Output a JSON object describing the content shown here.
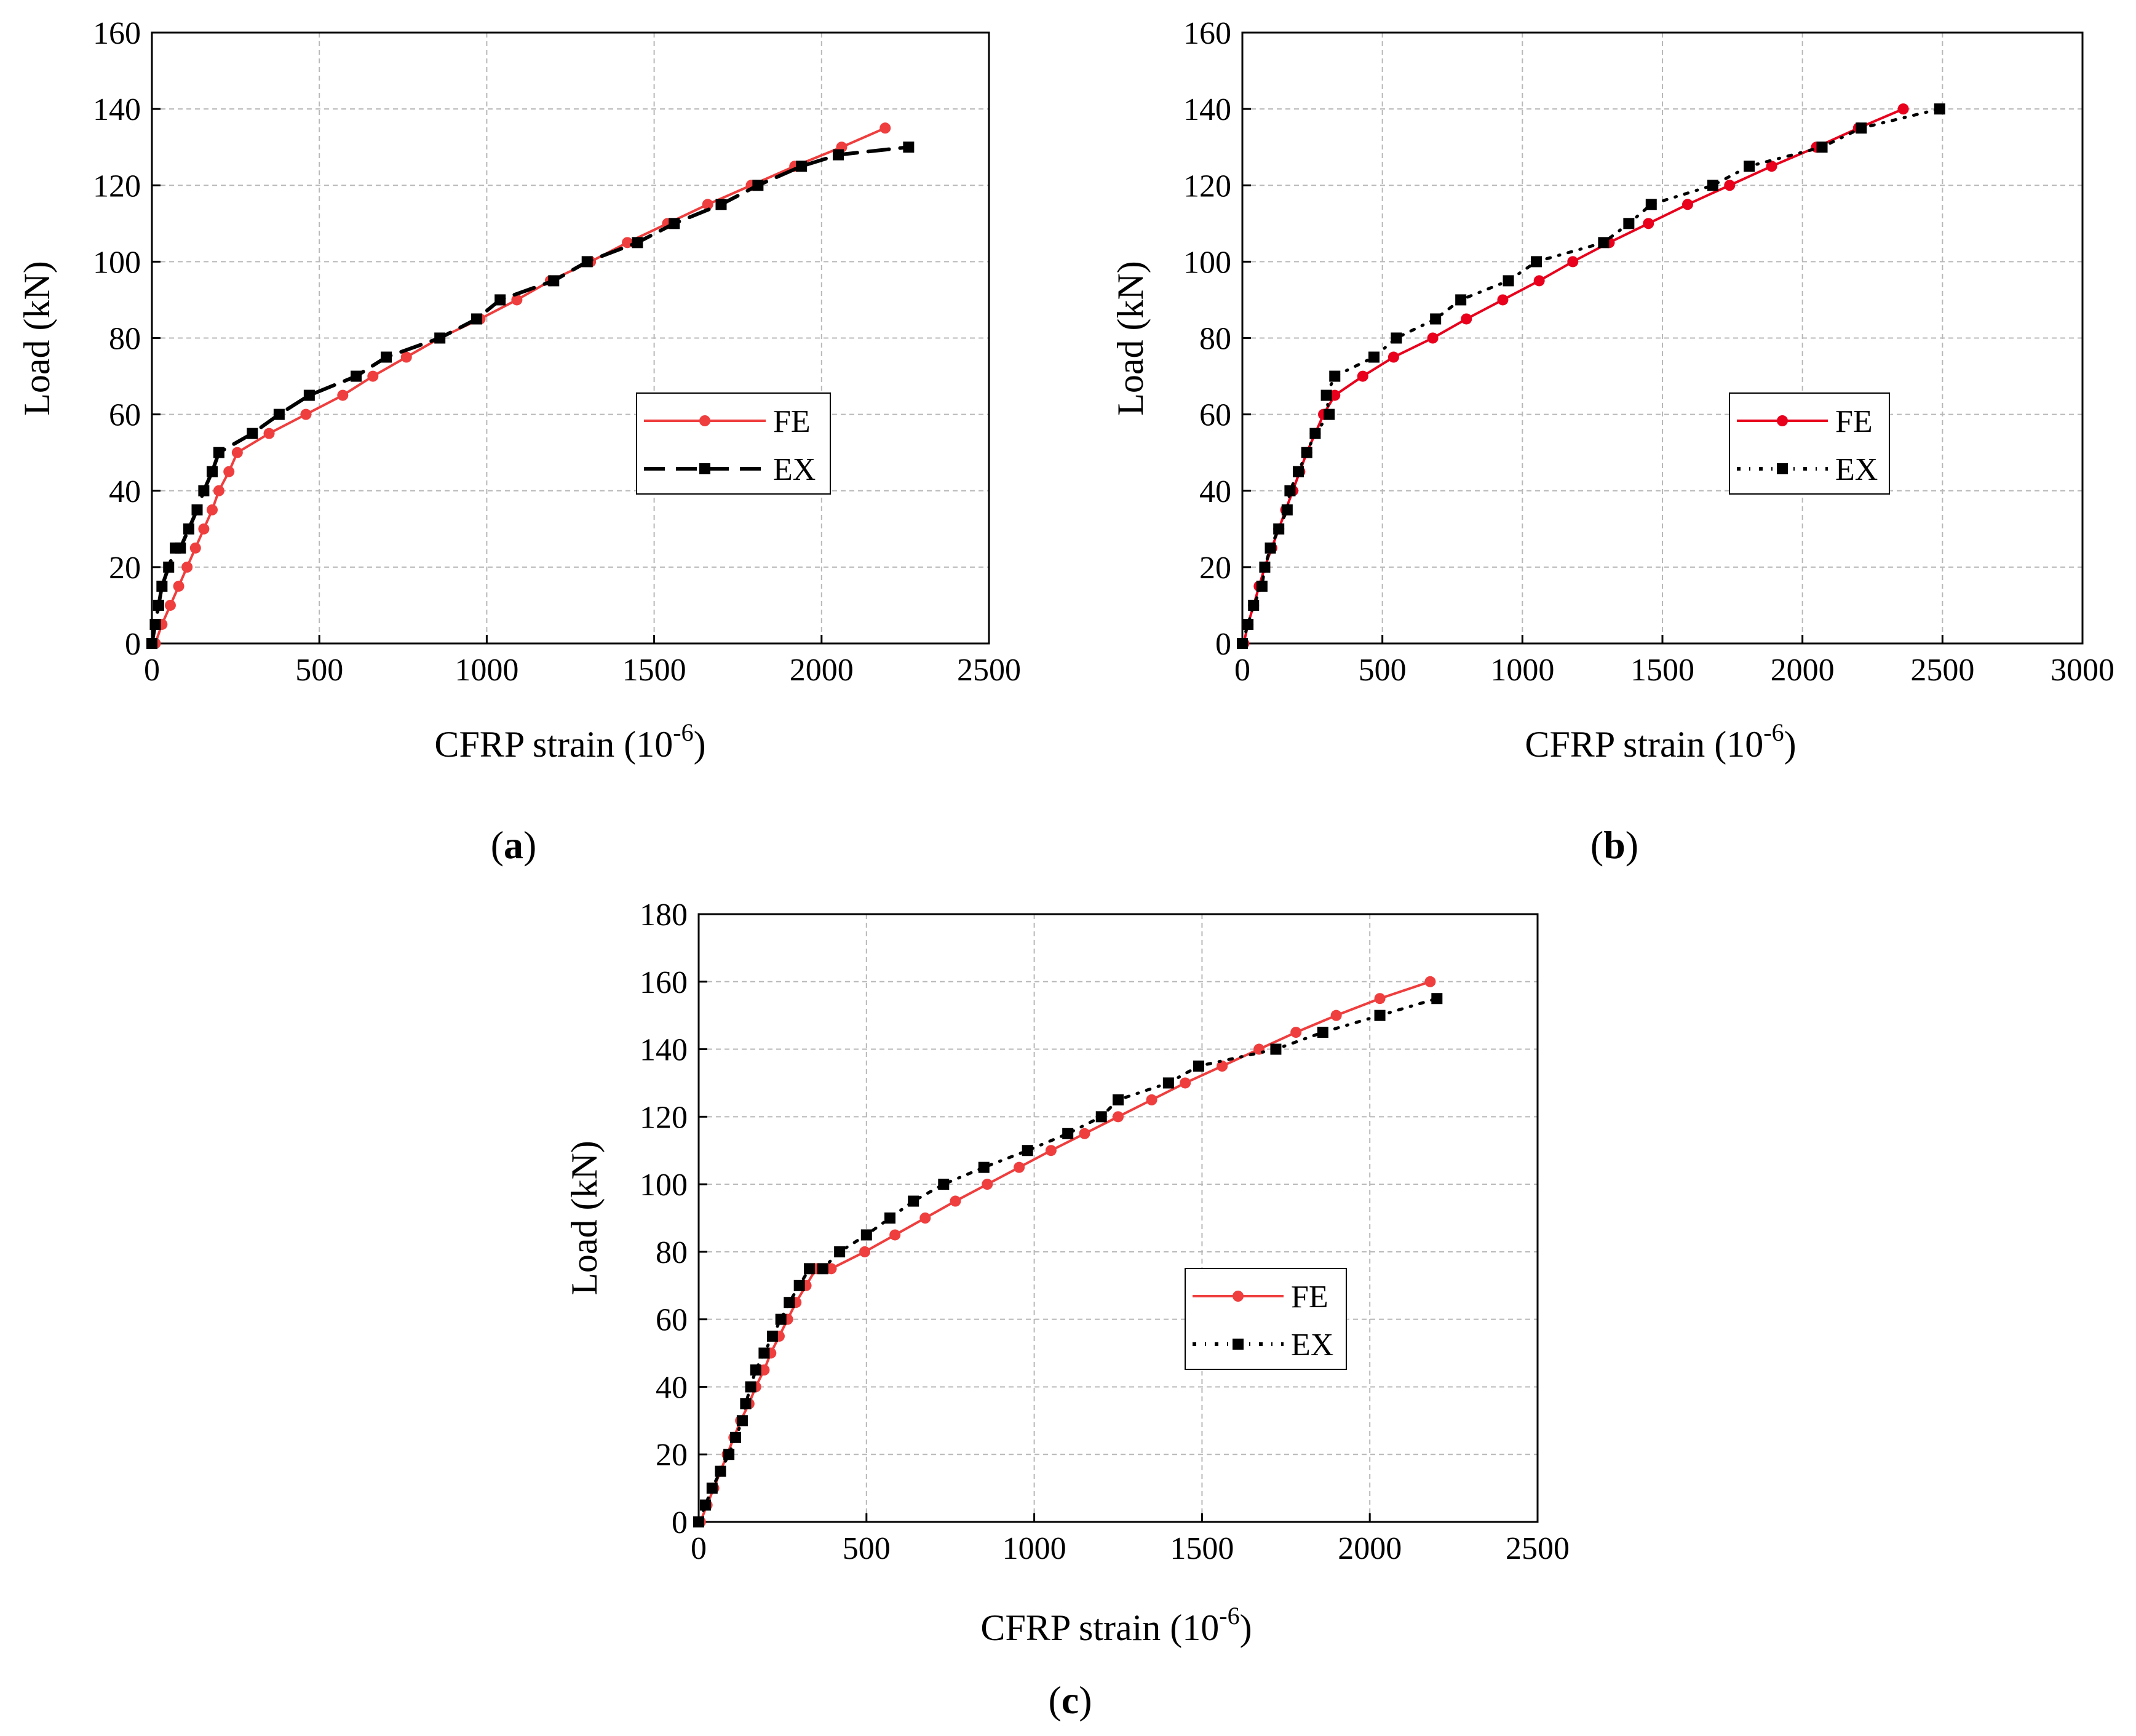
{
  "colors": {
    "fe": "#ef3e3e",
    "fe_b": "#e8001c",
    "ex": "#000000",
    "grid": "#b8b8b8"
  },
  "chart_data": [
    {
      "id": "a",
      "type": "line",
      "caption_letter": "a",
      "xlabel_main": "CFRP strain (10",
      "xlabel_exp": "-6",
      "xlabel_close": ")",
      "ylabel": "Load (kN)",
      "xlim": [
        0,
        2500
      ],
      "ylim": [
        0,
        160
      ],
      "xticks": [
        0,
        500,
        1000,
        1500,
        2000,
        2500
      ],
      "yticks": [
        0,
        20,
        40,
        60,
        80,
        100,
        120,
        140,
        160
      ],
      "grid": true,
      "legend_position": "center-right",
      "series": [
        {
          "name": "FE",
          "style": "solid-circle",
          "x": [
            10,
            30,
            55,
            80,
            105,
            130,
            155,
            180,
            200,
            230,
            255,
            350,
            460,
            570,
            660,
            760,
            860,
            980,
            1090,
            1190,
            1310,
            1420,
            1540,
            1660,
            1790,
            1920,
            2060,
            2190
          ],
          "y": [
            0,
            5,
            10,
            15,
            20,
            25,
            30,
            35,
            40,
            45,
            50,
            55,
            60,
            65,
            70,
            75,
            80,
            85,
            90,
            95,
            100,
            105,
            110,
            115,
            120,
            125,
            130,
            135
          ]
        },
        {
          "name": "EX",
          "style": "dashed-square",
          "x": [
            0,
            10,
            20,
            30,
            50,
            70,
            85,
            110,
            135,
            155,
            180,
            200,
            300,
            380,
            470,
            610,
            700,
            860,
            970,
            1040,
            1200,
            1300,
            1450,
            1560,
            1700,
            1810,
            1940,
            2050,
            2260
          ],
          "y": [
            0,
            5,
            10,
            15,
            20,
            25,
            25,
            30,
            35,
            40,
            45,
            50,
            55,
            60,
            65,
            70,
            75,
            80,
            85,
            90,
            95,
            100,
            105,
            110,
            115,
            120,
            125,
            128,
            130
          ]
        }
      ]
    },
    {
      "id": "b",
      "type": "line",
      "caption_letter": "b",
      "xlabel_main": "CFRP strain (10",
      "xlabel_exp": "-6",
      "xlabel_close": ")",
      "ylabel": "Load (kN)",
      "xlim": [
        0,
        3000
      ],
      "ylim": [
        0,
        160
      ],
      "xticks": [
        0,
        500,
        1000,
        1500,
        2000,
        2500,
        3000
      ],
      "yticks": [
        0,
        20,
        40,
        60,
        80,
        100,
        120,
        140,
        160
      ],
      "grid": true,
      "legend_position": "center-right",
      "series": [
        {
          "name": "FE",
          "style": "solid-circle",
          "x": [
            5,
            20,
            40,
            60,
            80,
            105,
            130,
            155,
            180,
            205,
            230,
            260,
            290,
            330,
            430,
            540,
            680,
            800,
            930,
            1060,
            1180,
            1310,
            1450,
            1590,
            1740,
            1890,
            2050,
            2200,
            2360
          ],
          "y": [
            0,
            5,
            10,
            15,
            20,
            25,
            30,
            35,
            40,
            45,
            50,
            55,
            60,
            65,
            70,
            75,
            80,
            85,
            90,
            95,
            100,
            105,
            110,
            115,
            120,
            125,
            130,
            135,
            140
          ]
        },
        {
          "name": "EX",
          "style": "dotted-square",
          "x": [
            0,
            20,
            40,
            70,
            80,
            100,
            130,
            160,
            170,
            200,
            230,
            260,
            310,
            300,
            330,
            470,
            550,
            690,
            780,
            950,
            1050,
            1290,
            1380,
            1460,
            1680,
            1810,
            2070,
            2210,
            2490
          ],
          "y": [
            0,
            5,
            10,
            15,
            20,
            25,
            30,
            35,
            40,
            45,
            50,
            55,
            60,
            65,
            70,
            75,
            80,
            85,
            90,
            95,
            100,
            105,
            110,
            115,
            120,
            125,
            130,
            135,
            140
          ]
        }
      ]
    },
    {
      "id": "c",
      "type": "line",
      "caption_letter": "c",
      "xlabel_main": "CFRP strain (10",
      "xlabel_exp": "-6",
      "xlabel_close": ")",
      "ylabel": "Load (kN)",
      "xlim": [
        0,
        2500
      ],
      "ylim": [
        0,
        180
      ],
      "xticks": [
        0,
        500,
        1000,
        1500,
        2000,
        2500
      ],
      "yticks": [
        0,
        20,
        40,
        60,
        80,
        100,
        120,
        140,
        160,
        180
      ],
      "grid": true,
      "legend_position": "center-right",
      "series": [
        {
          "name": "FE",
          "style": "solid-circle",
          "x": [
            5,
            25,
            45,
            65,
            85,
            105,
            125,
            150,
            170,
            195,
            215,
            240,
            265,
            290,
            320,
            350,
            395,
            495,
            585,
            675,
            765,
            860,
            955,
            1050,
            1150,
            1250,
            1350,
            1450,
            1560,
            1670,
            1780,
            1900,
            2030,
            2180
          ],
          "y": [
            0,
            5,
            10,
            15,
            20,
            25,
            30,
            35,
            40,
            45,
            50,
            55,
            60,
            65,
            70,
            75,
            75,
            80,
            85,
            90,
            95,
            100,
            105,
            110,
            115,
            120,
            125,
            130,
            135,
            140,
            145,
            150,
            155,
            160
          ]
        },
        {
          "name": "EX",
          "style": "dotted-square",
          "x": [
            0,
            20,
            40,
            65,
            90,
            110,
            130,
            140,
            155,
            170,
            195,
            220,
            245,
            270,
            300,
            330,
            370,
            420,
            500,
            570,
            640,
            730,
            850,
            980,
            1100,
            1200,
            1250,
            1400,
            1490,
            1720,
            1860,
            2030,
            2200
          ],
          "y": [
            0,
            5,
            10,
            15,
            20,
            25,
            30,
            35,
            40,
            45,
            50,
            55,
            60,
            65,
            70,
            75,
            75,
            80,
            85,
            90,
            95,
            100,
            105,
            110,
            115,
            120,
            125,
            130,
            135,
            140,
            145,
            150,
            155
          ]
        }
      ]
    }
  ]
}
